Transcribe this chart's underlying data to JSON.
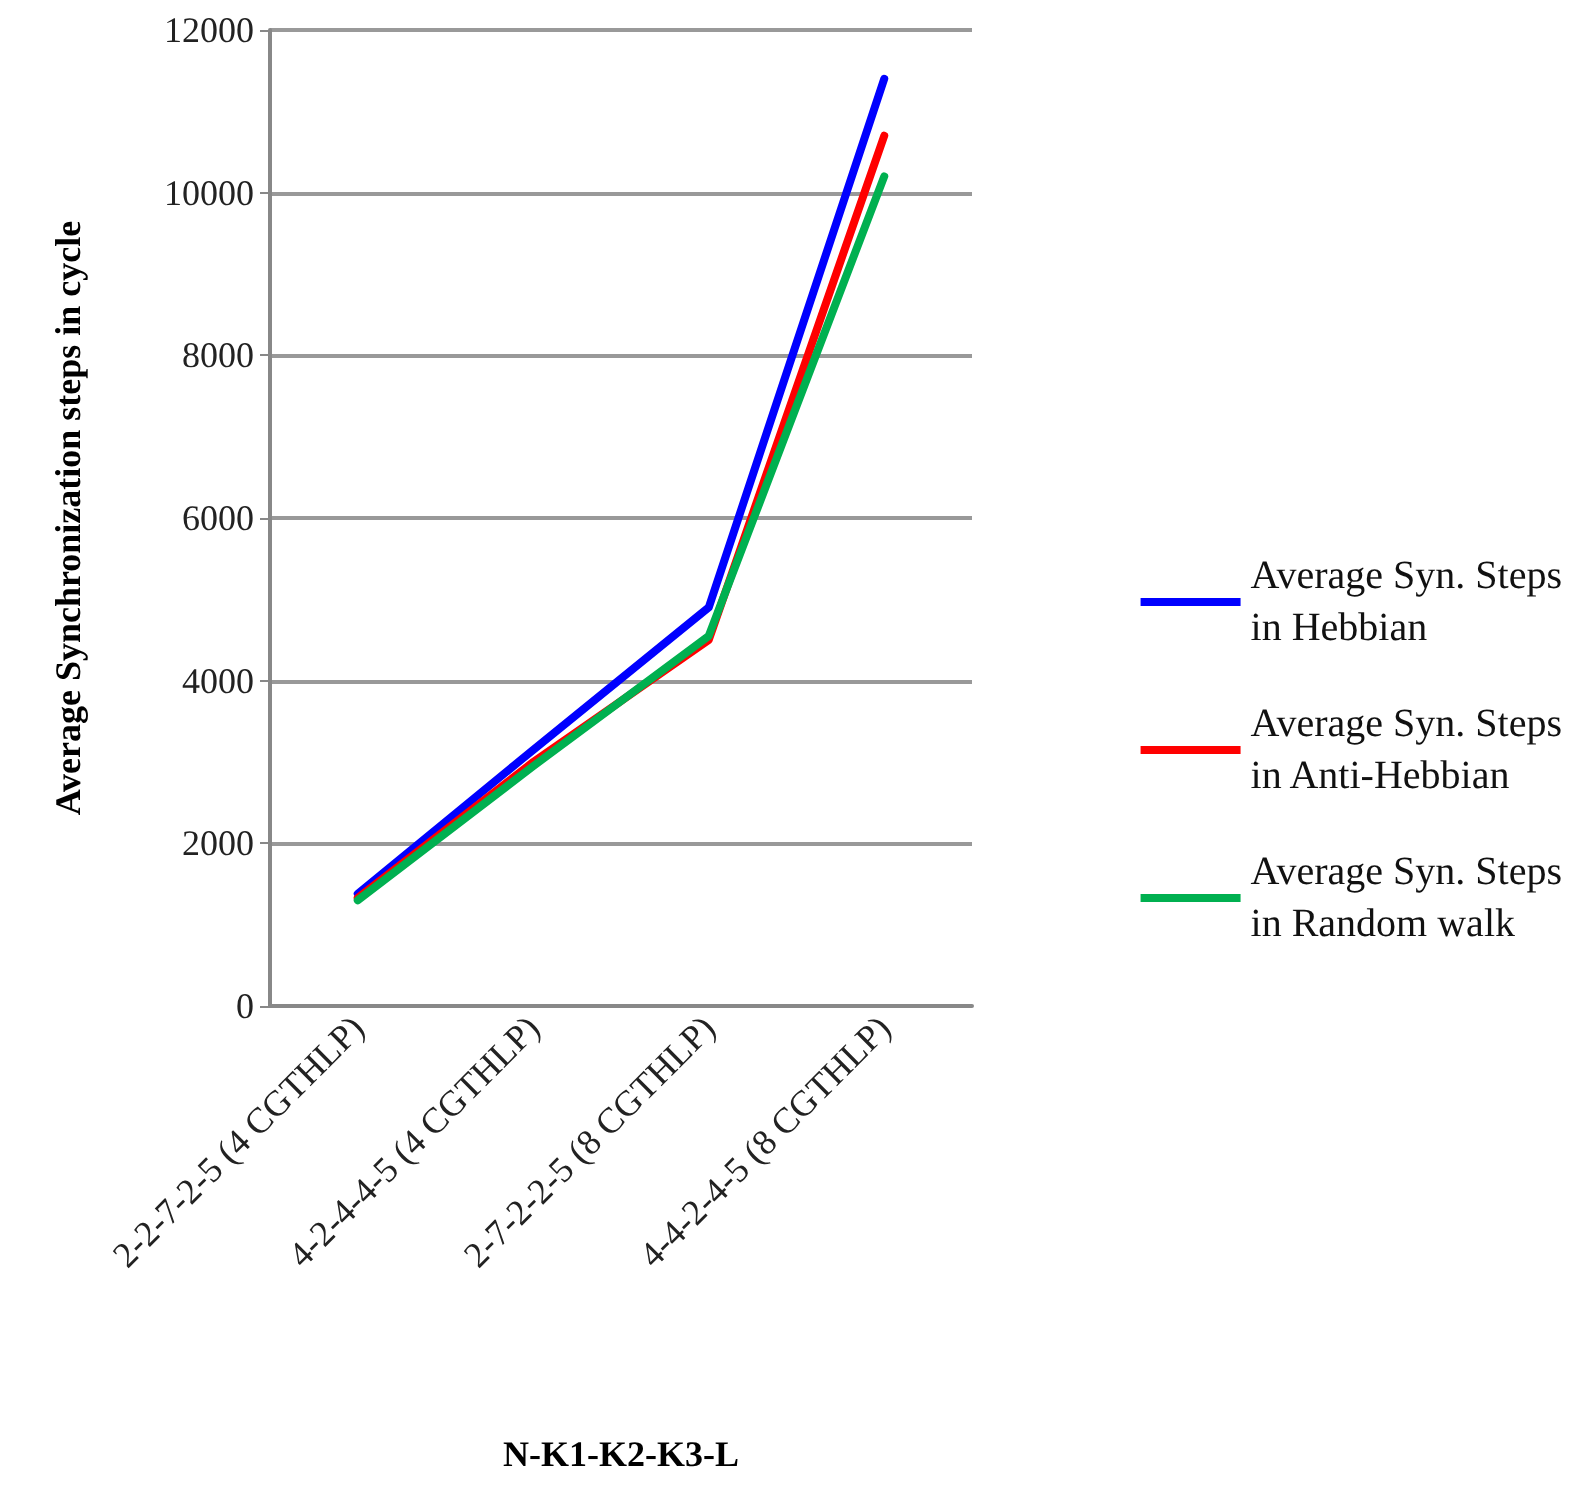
{
  "chart_data": {
    "type": "line",
    "xlabel": "N-K1-K2-K3-L",
    "ylabel": "Average Synchronization steps in cycle",
    "categories": [
      "2-2-7-2-5 (4 CGTHLP)",
      "4-2-4-4-5 (4 CGTHLP)",
      "2-7-2-2-5 (8 CGTHLP)",
      "4-4-2-4-5 (8 CGTHLP)"
    ],
    "series": [
      {
        "name": "Average Syn. Steps\nin Hebbian",
        "color": "#0000ff",
        "values": [
          1380,
          3150,
          4900,
          11400
        ]
      },
      {
        "name": "Average Syn. Steps\nin Anti-Hebbian",
        "color": "#ff0000",
        "values": [
          1330,
          3000,
          4500,
          10700
        ]
      },
      {
        "name": "Average Syn. Steps\nin Random walk",
        "color": "#00b050",
        "values": [
          1300,
          2950,
          4550,
          10200
        ]
      }
    ],
    "ylim": [
      0,
      12000
    ],
    "yticks": [
      0,
      2000,
      4000,
      6000,
      8000,
      10000,
      12000
    ],
    "grid": "y",
    "legend": "right",
    "marker": "none",
    "line_style": "solid"
  }
}
